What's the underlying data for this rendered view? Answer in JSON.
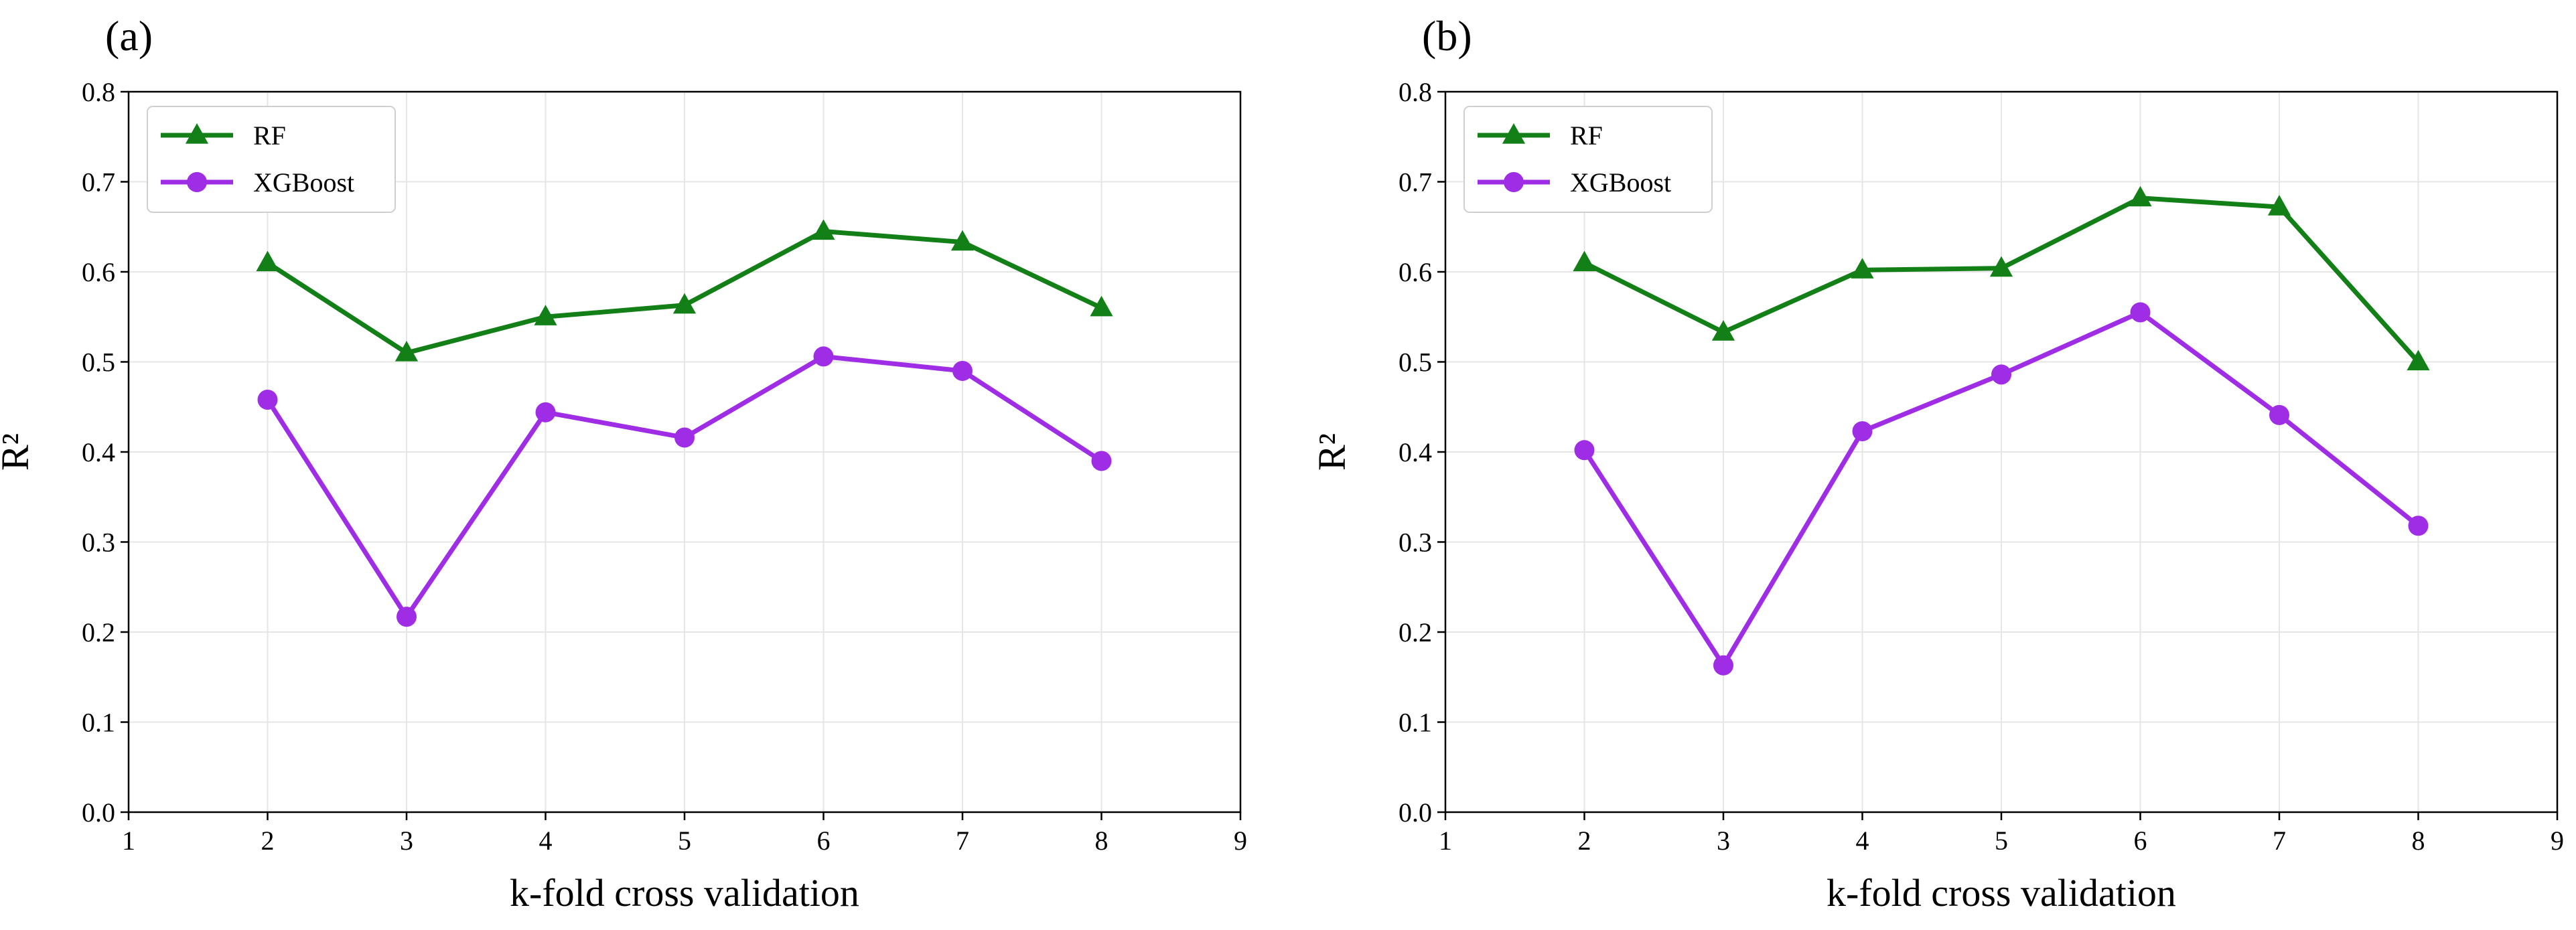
{
  "chart_data": [
    {
      "type": "line",
      "panel_label": "(a)",
      "xlabel": "k-fold cross validation",
      "ylabel": "R²",
      "xlim": [
        1,
        9
      ],
      "ylim": [
        0.0,
        0.8
      ],
      "xticks": [
        "1",
        "2",
        "3",
        "4",
        "5",
        "6",
        "7",
        "8",
        "9"
      ],
      "yticks": [
        "0.0",
        "0.1",
        "0.2",
        "0.3",
        "0.4",
        "0.5",
        "0.6",
        "0.7",
        "0.8"
      ],
      "grid": true,
      "legend_position": "top-left",
      "x": [
        2,
        3,
        4,
        5,
        6,
        7,
        8
      ],
      "series": [
        {
          "name": "RF",
          "marker": "triangle",
          "color": "#137f17",
          "values": [
            0.61,
            0.51,
            0.55,
            0.563,
            0.645,
            0.633,
            0.56
          ]
        },
        {
          "name": "XGBoost",
          "marker": "circle",
          "color": "#a02de6",
          "values": [
            0.458,
            0.217,
            0.444,
            0.416,
            0.506,
            0.49,
            0.39
          ]
        }
      ]
    },
    {
      "type": "line",
      "panel_label": "(b)",
      "xlabel": "k-fold cross validation",
      "ylabel": "R²",
      "xlim": [
        1,
        9
      ],
      "ylim": [
        0.0,
        0.8
      ],
      "xticks": [
        "1",
        "2",
        "3",
        "4",
        "5",
        "6",
        "7",
        "8",
        "9"
      ],
      "yticks": [
        "0.0",
        "0.1",
        "0.2",
        "0.3",
        "0.4",
        "0.5",
        "0.6",
        "0.7",
        "0.8"
      ],
      "grid": true,
      "legend_position": "top-left",
      "x": [
        2,
        3,
        4,
        5,
        6,
        7,
        8
      ],
      "series": [
        {
          "name": "RF",
          "marker": "triangle",
          "color": "#137f17",
          "values": [
            0.61,
            0.533,
            0.602,
            0.604,
            0.682,
            0.672,
            0.5
          ]
        },
        {
          "name": "XGBoost",
          "marker": "circle",
          "color": "#a02de6",
          "values": [
            0.402,
            0.163,
            0.423,
            0.486,
            0.555,
            0.441,
            0.318
          ]
        }
      ]
    }
  ]
}
